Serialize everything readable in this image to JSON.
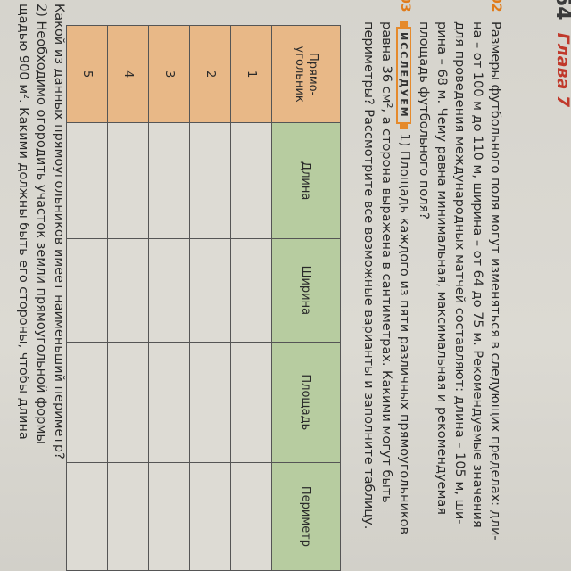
{
  "header": {
    "page_number": "54",
    "chapter": "Глава 7"
  },
  "task2": {
    "number": "02",
    "lines": [
      "Размеры футбольного поля могут изменяться в следующих пределах: дли-",
      "на – от 100 м до 110 м, ширина – от 64 до 75 м. Рекомендуемые значения",
      "для проведения международных матчей составляют: длина – 105 м, ши-",
      "рина – 68 м. Чему равна минимальная, максимальная и рекомендуемая",
      "площадь футбольного поля?"
    ]
  },
  "task3": {
    "number": "03",
    "badge": "ИССЛЕДУЕМ",
    "lines": [
      "1) Площадь каждого из пяти различных прямоугольников",
      "равна 36 см², а сторона выражена в сантиметрах. Какими могут быть",
      "периметры? Рассмотрите все возможные варианты и заполните таблицу."
    ]
  },
  "table": {
    "headers": [
      "Прямо-угольник",
      "Длина",
      "Ширина",
      "Площадь",
      "Периметр"
    ],
    "rows": [
      "1",
      "2",
      "3",
      "4",
      "5"
    ]
  },
  "footer": {
    "lines": [
      "Какой из данных прямоугольников имеет наименьший периметр?",
      "2) Необходимо огородить участок земли прямоугольной формы",
      "щадью 900 м². Какими должны быть его стороны, чтобы длина"
    ]
  },
  "colors": {
    "header_orange": "#e8b887",
    "header_green": "#b7cca0",
    "accent": "#e07b1a",
    "chapter_red": "#c0392b"
  }
}
